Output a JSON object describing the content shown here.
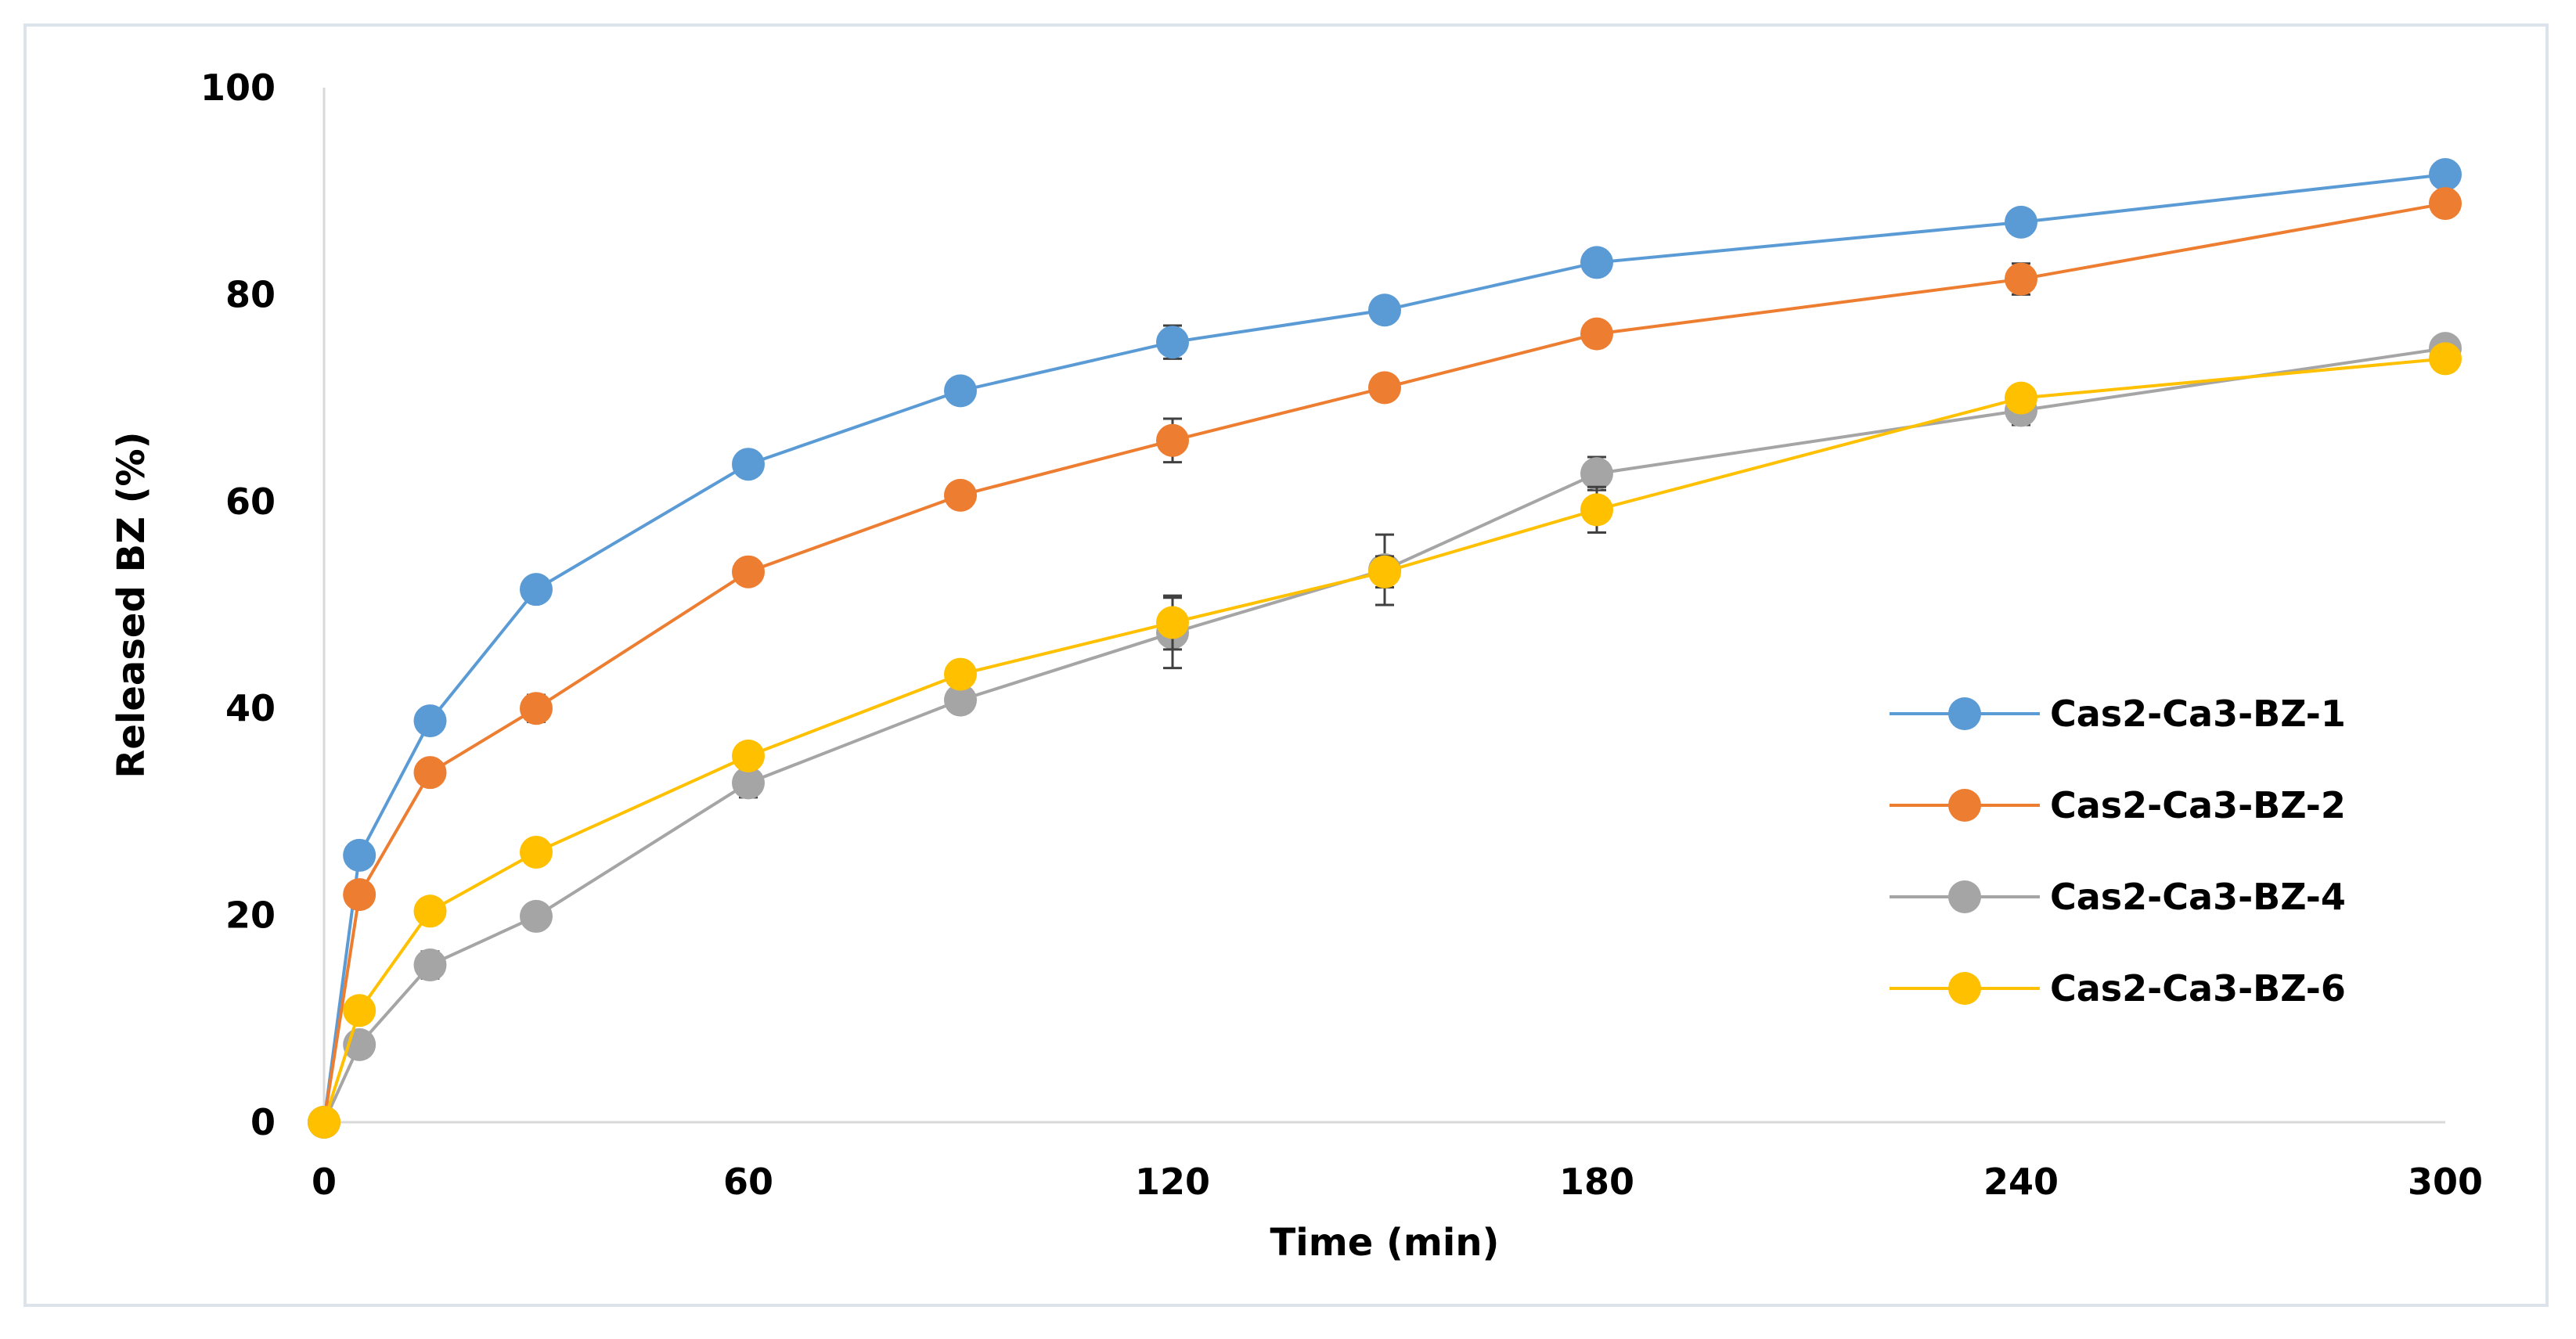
{
  "chart_data": {
    "type": "line",
    "title": "",
    "xlabel": "Time (min)",
    "ylabel": "Released BZ (%)",
    "xlim": [
      0,
      300
    ],
    "ylim": [
      0,
      100
    ],
    "xticks": [
      0,
      60,
      120,
      180,
      240,
      300
    ],
    "yticks": [
      0,
      20,
      40,
      60,
      80,
      100
    ],
    "x": [
      0,
      5,
      15,
      30,
      60,
      90,
      120,
      150,
      180,
      240,
      300
    ],
    "grid": false,
    "legend_position": "right",
    "series": [
      {
        "name": "Cas2-Ca3-BZ-1",
        "color": "#5b9bd5",
        "values": [
          0,
          25.8,
          38.8,
          51.5,
          63.6,
          70.7,
          75.4,
          78.5,
          83.1,
          87.0,
          91.6
        ],
        "errors": [
          0,
          0.5,
          0.8,
          0.6,
          0.8,
          0.7,
          1.6,
          0.8,
          1.2,
          1.1,
          0.9
        ]
      },
      {
        "name": "Cas2-Ca3-BZ-2",
        "color": "#ed7d31",
        "values": [
          0,
          22.0,
          33.8,
          40.0,
          53.2,
          60.6,
          65.9,
          71.0,
          76.2,
          81.5,
          88.8
        ],
        "errors": [
          0,
          0.5,
          0.9,
          1.3,
          0.9,
          0.7,
          2.1,
          0.9,
          1.0,
          1.5,
          0.8
        ]
      },
      {
        "name": "Cas2-Ca3-BZ-4",
        "color": "#a5a5a5",
        "values": [
          0,
          7.5,
          15.2,
          19.9,
          32.8,
          40.8,
          47.3,
          53.4,
          62.7,
          68.8,
          74.8
        ],
        "errors": [
          0,
          0.6,
          1.3,
          0.7,
          1.4,
          1.2,
          3.4,
          3.4,
          1.6,
          1.4,
          0.9
        ]
      },
      {
        "name": "Cas2-Ca3-BZ-6",
        "color": "#ffc000",
        "values": [
          0,
          10.8,
          20.4,
          26.1,
          35.4,
          43.3,
          48.3,
          53.2,
          59.2,
          70.0,
          73.8
        ],
        "errors": [
          0,
          0.5,
          0.7,
          0.6,
          1.2,
          1.0,
          2.6,
          1.5,
          2.2,
          1.2,
          0.8
        ]
      }
    ]
  }
}
